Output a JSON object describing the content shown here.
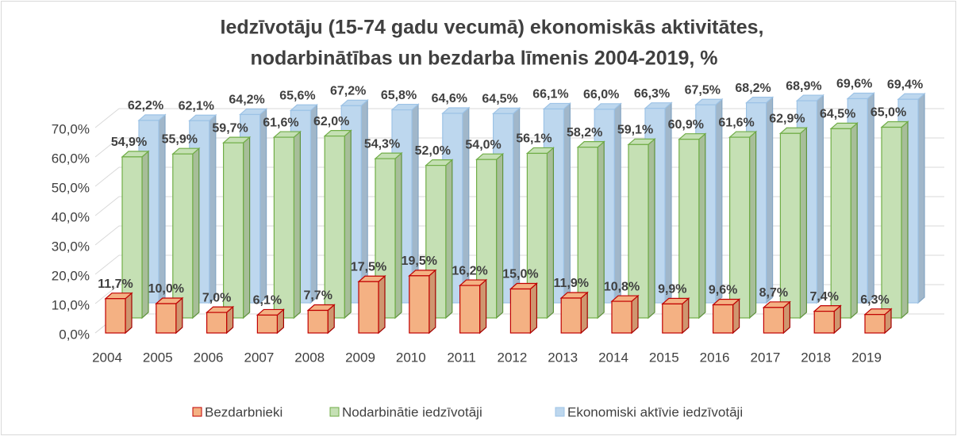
{
  "chart_data": {
    "type": "bar3d",
    "title": [
      "Iedzīvotāju (15-74 gadu vecumā) ekonomiskās aktivitātes,",
      "nodarbinātības un bezdarba līmenis 2004-2019,  %"
    ],
    "categories": [
      "2004",
      "2005",
      "2006",
      "2007",
      "2008",
      "2009",
      "2010",
      "2011",
      "2012",
      "2013",
      "2014",
      "2015",
      "2016",
      "2017",
      "2018",
      "2019"
    ],
    "series": [
      {
        "name": "Bezdarbnieki",
        "color": "#f4b183",
        "edge": "#c00000",
        "values": [
          11.7,
          10.0,
          7.0,
          6.1,
          7.7,
          17.5,
          19.5,
          16.2,
          15.0,
          11.9,
          10.8,
          9.9,
          9.6,
          8.7,
          7.4,
          6.3
        ],
        "value_labels": [
          "11,7%",
          "10,0%",
          "7,0%",
          "6,1%",
          "7,7%",
          "17,5%",
          "19,5%",
          "16,2%",
          "15,0%",
          "11,9%",
          "10,8%",
          "9,9%",
          "9,6%",
          "8,7%",
          "7,4%",
          "6,3%"
        ]
      },
      {
        "name": "Nodarbinātie iedzīvotāji",
        "color": "#c5e0b4",
        "edge": "#70ad47",
        "values": [
          54.9,
          55.9,
          59.7,
          61.6,
          62.0,
          54.3,
          52.0,
          54.0,
          56.1,
          58.2,
          59.1,
          60.9,
          61.6,
          62.9,
          64.5,
          65.0
        ],
        "value_labels": [
          "54,9%",
          "55,9%",
          "59,7%",
          "61,6%",
          "62,0%",
          "54,3%",
          "52,0%",
          "54,0%",
          "56,1%",
          "58,2%",
          "59,1%",
          "60,9%",
          "61,6%",
          "62,9%",
          "64,5%",
          "65,0%"
        ]
      },
      {
        "name": "Ekonomiski aktīvie iedzīvotāji",
        "color": "#bdd7ee",
        "edge": "#9dc3e6",
        "values": [
          62.2,
          62.1,
          64.2,
          65.6,
          67.2,
          65.8,
          64.6,
          64.5,
          66.1,
          66.0,
          66.3,
          67.5,
          68.2,
          68.9,
          69.6,
          69.4
        ],
        "value_labels": [
          "62,2%",
          "62,1%",
          "64,2%",
          "65,6%",
          "67,2%",
          "65,8%",
          "64,6%",
          "64,5%",
          "66,1%",
          "66,0%",
          "66,3%",
          "67,5%",
          "68,2%",
          "68,9%",
          "69,6%",
          "69,4%"
        ]
      }
    ],
    "ylim": [
      0,
      70
    ],
    "yticks": [
      {
        "value": 0,
        "label": "0,0%"
      },
      {
        "value": 10,
        "label": "10,0%"
      },
      {
        "value": 20,
        "label": "20,0%"
      },
      {
        "value": 30,
        "label": "30,0%"
      },
      {
        "value": 40,
        "label": "40,0%"
      },
      {
        "value": 50,
        "label": "50,0%"
      },
      {
        "value": 60,
        "label": "60,0%"
      },
      {
        "value": 70,
        "label": "70,0%"
      }
    ],
    "grid": true,
    "legend": "bottom"
  }
}
